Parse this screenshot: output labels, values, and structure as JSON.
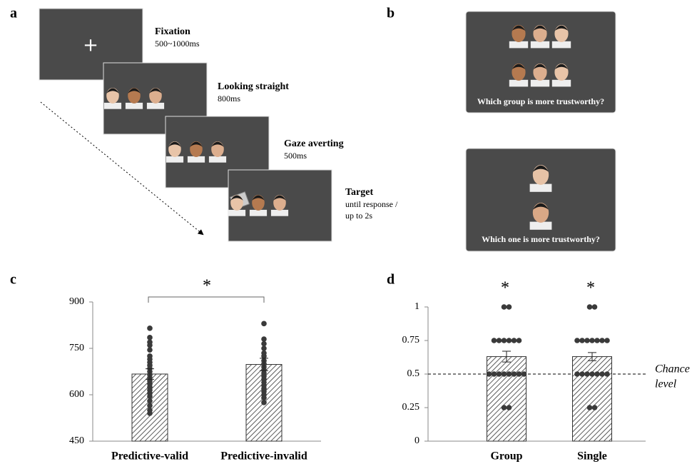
{
  "panels": {
    "a": {
      "label": "a",
      "steps": [
        {
          "title": "Fixation",
          "lines": [
            "500~1000ms"
          ]
        },
        {
          "title": "Looking straight",
          "lines": [
            "800ms"
          ]
        },
        {
          "title": "Gaze averting",
          "lines": [
            "500ms"
          ]
        },
        {
          "title": "Target",
          "lines": [
            "until response /",
            "up to 2s"
          ]
        }
      ]
    },
    "b": {
      "label": "b",
      "questions": [
        "Which group is more trustworthy?",
        "Which one is more trustworthy?"
      ]
    }
  },
  "chart_data": [
    {
      "type": "bar",
      "panel_label": "c",
      "categories": [
        "Predictive-valid",
        "Predictive-invalid"
      ],
      "values": [
        667,
        698
      ],
      "errors": [
        17,
        20
      ],
      "points": [
        [
          815,
          785,
          770,
          760,
          745,
          725,
          715,
          705,
          695,
          685,
          675,
          665,
          655,
          645,
          635,
          625,
          615,
          605,
          595,
          580,
          565,
          550,
          540
        ],
        [
          830,
          780,
          765,
          750,
          735,
          725,
          710,
          700,
          690,
          680,
          670,
          660,
          650,
          640,
          630,
          620,
          610,
          600,
          590,
          575
        ]
      ],
      "significance": "*",
      "ylim": [
        450,
        900
      ],
      "yticks": [
        450,
        600,
        750,
        900
      ]
    },
    {
      "type": "bar",
      "panel_label": "d",
      "categories": [
        "Group",
        "Single"
      ],
      "values": [
        0.63,
        0.63
      ],
      "errors": [
        0.04,
        0.03
      ],
      "points": [
        [
          1,
          1,
          0.75,
          0.75,
          0.75,
          0.75,
          0.75,
          0.75,
          0.5,
          0.5,
          0.5,
          0.5,
          0.5,
          0.5,
          0.5,
          0.5,
          0.25,
          0.25
        ],
        [
          1,
          1,
          0.75,
          0.75,
          0.75,
          0.75,
          0.75,
          0.75,
          0.75,
          0.5,
          0.5,
          0.5,
          0.5,
          0.5,
          0.5,
          0.5,
          0.25,
          0.25
        ]
      ],
      "significance": [
        "*",
        "*"
      ],
      "reference_line": {
        "value": 0.5,
        "lines": [
          "Chance",
          "level"
        ]
      },
      "ylim": [
        0,
        1
      ],
      "yticks": [
        0,
        0.25,
        0.5,
        0.75,
        1
      ]
    }
  ]
}
